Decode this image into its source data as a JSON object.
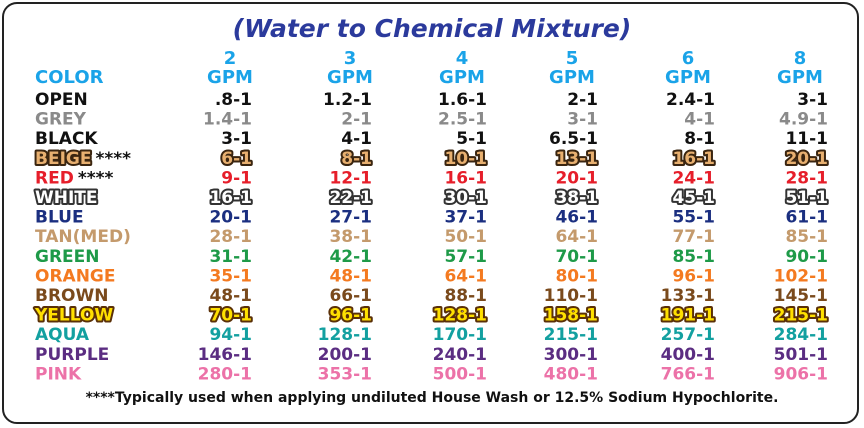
{
  "title": "(Water to Chemical Mixture)",
  "header": {
    "color_label": "COLOR",
    "columns": [
      {
        "number": "2",
        "unit": "GPM"
      },
      {
        "number": "3",
        "unit": "GPM"
      },
      {
        "number": "4",
        "unit": "GPM"
      },
      {
        "number": "5",
        "unit": "GPM"
      },
      {
        "number": "6",
        "unit": "GPM"
      },
      {
        "number": "8",
        "unit": "GPM"
      }
    ]
  },
  "rows": [
    {
      "name": "OPEN",
      "values": [
        ".8-1",
        "1.2-1",
        "1.6-1",
        "2-1",
        "2.4-1",
        "3-1"
      ]
    },
    {
      "name": "GREY",
      "values": [
        "1.4-1",
        "2-1",
        "2.5-1",
        "3-1",
        "4-1",
        "4.9-1"
      ]
    },
    {
      "name": "BLACK",
      "values": [
        "3-1",
        "4-1",
        "5-1",
        "6.5-1",
        "8-1",
        "11-1"
      ]
    },
    {
      "name": "BEIGE",
      "note": "****",
      "values": [
        "6-1",
        "8-1",
        "10-1",
        "13-1",
        "16-1",
        "20-1"
      ]
    },
    {
      "name": "RED",
      "note": "****",
      "values": [
        "9-1",
        "12-1",
        "16-1",
        "20-1",
        "24-1",
        "28-1"
      ]
    },
    {
      "name": "WHITE",
      "values": [
        "16-1",
        "22-1",
        "30-1",
        "38-1",
        "45-1",
        "51-1"
      ]
    },
    {
      "name": "BLUE",
      "values": [
        "20-1",
        "27-1",
        "37-1",
        "46-1",
        "55-1",
        "61-1"
      ]
    },
    {
      "name": "TAN(MED)",
      "values": [
        "28-1",
        "38-1",
        "50-1",
        "64-1",
        "77-1",
        "85-1"
      ]
    },
    {
      "name": "GREEN",
      "values": [
        "31-1",
        "42-1",
        "57-1",
        "70-1",
        "85-1",
        "90-1"
      ]
    },
    {
      "name": "ORANGE",
      "values": [
        "35-1",
        "48-1",
        "64-1",
        "80-1",
        "96-1",
        "102-1"
      ]
    },
    {
      "name": "BROWN",
      "values": [
        "48-1",
        "66-1",
        "88-1",
        "110-1",
        "133-1",
        "145-1"
      ]
    },
    {
      "name": "YELLOW",
      "values": [
        "70-1",
        "96-1",
        "128-1",
        "158-1",
        "191-1",
        "215-1"
      ]
    },
    {
      "name": "AQUA",
      "values": [
        "94-1",
        "128-1",
        "170-1",
        "215-1",
        "257-1",
        "284-1"
      ]
    },
    {
      "name": "PURPLE",
      "values": [
        "146-1",
        "200-1",
        "240-1",
        "300-1",
        "400-1",
        "501-1"
      ]
    },
    {
      "name": "PINK",
      "values": [
        "280-1",
        "353-1",
        "500-1",
        "480-1",
        "766-1",
        "906-1"
      ]
    }
  ],
  "footnote": "****Typically used when applying undiluted House Wash or 12.5% Sodium Hypochlorite."
}
